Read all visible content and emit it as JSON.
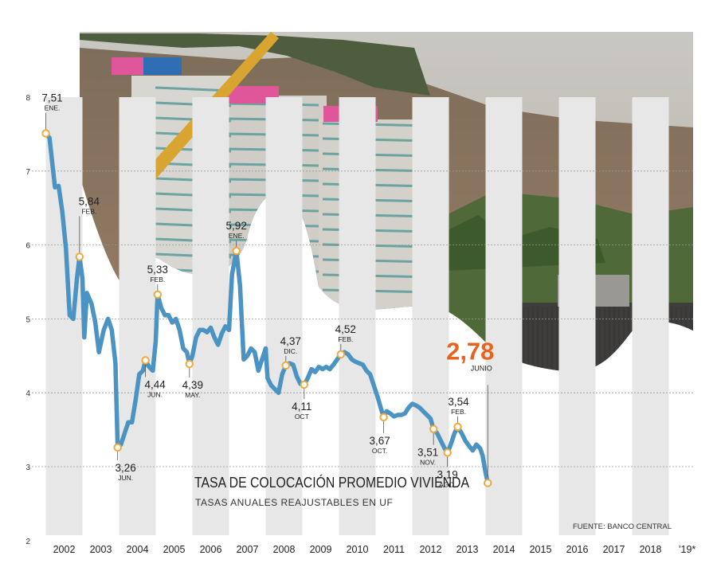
{
  "chart_data": {
    "type": "line",
    "title": "TASA DE COLOCACIÓN PROMEDIO VIVIENDA",
    "subtitle": "TASAS ANUALES REAJUSTABLES EN UF",
    "source": "FUENTE: BANCO CENTRAL",
    "xlabel": "",
    "ylabel": "",
    "ylim": [
      2,
      8
    ],
    "yticks": [
      "2",
      "3",
      "4",
      "5",
      "6",
      "7",
      "8"
    ],
    "xlim": [
      2002,
      2020
    ],
    "years": [
      "2002",
      "2003",
      "2004",
      "2005",
      "2006",
      "2007",
      "2008",
      "2009",
      "2010",
      "2011",
      "2012",
      "2013",
      "2014",
      "2015",
      "2016",
      "2017",
      "2018",
      "’19*"
    ],
    "grid": true,
    "accent_color": "#e8641e",
    "line_color": "#4a93c2",
    "band_color": "#e7e7e7",
    "marker_color": "#f2a93b",
    "series": [
      {
        "points": [
          [
            2002.0,
            7.51
          ],
          [
            2002.1,
            7.45
          ],
          [
            2002.25,
            6.78
          ],
          [
            2002.35,
            6.8
          ],
          [
            2002.45,
            6.45
          ],
          [
            2002.55,
            5.95
          ],
          [
            2002.65,
            5.05
          ],
          [
            2002.75,
            5.0
          ],
          [
            2002.85,
            5.55
          ],
          [
            2002.92,
            5.84
          ],
          [
            2003.0,
            5.55
          ],
          [
            2003.05,
            4.75
          ],
          [
            2003.12,
            5.35
          ],
          [
            2003.25,
            5.2
          ],
          [
            2003.35,
            4.95
          ],
          [
            2003.45,
            4.55
          ],
          [
            2003.58,
            4.85
          ],
          [
            2003.7,
            5.0
          ],
          [
            2003.8,
            4.85
          ],
          [
            2003.9,
            4.4
          ],
          [
            2003.96,
            3.26
          ],
          [
            2004.05,
            3.3
          ],
          [
            2004.15,
            3.45
          ],
          [
            2004.25,
            3.6
          ],
          [
            2004.35,
            3.6
          ],
          [
            2004.45,
            3.9
          ],
          [
            2004.55,
            4.25
          ],
          [
            2004.65,
            4.3
          ],
          [
            2004.72,
            4.44
          ],
          [
            2004.82,
            4.35
          ],
          [
            2004.92,
            4.3
          ],
          [
            2005.0,
            4.7
          ],
          [
            2005.05,
            5.33
          ],
          [
            2005.15,
            5.15
          ],
          [
            2005.25,
            5.05
          ],
          [
            2005.35,
            5.05
          ],
          [
            2005.45,
            4.95
          ],
          [
            2005.55,
            5.0
          ],
          [
            2005.65,
            4.85
          ],
          [
            2005.75,
            4.6
          ],
          [
            2005.85,
            4.55
          ],
          [
            2005.92,
            4.39
          ],
          [
            2006.0,
            4.5
          ],
          [
            2006.1,
            4.75
          ],
          [
            2006.2,
            4.85
          ],
          [
            2006.3,
            4.85
          ],
          [
            2006.4,
            4.82
          ],
          [
            2006.5,
            4.88
          ],
          [
            2006.6,
            4.75
          ],
          [
            2006.7,
            4.65
          ],
          [
            2006.8,
            4.8
          ],
          [
            2006.9,
            4.9
          ],
          [
            2007.0,
            4.85
          ],
          [
            2007.08,
            5.6
          ],
          [
            2007.2,
            5.92
          ],
          [
            2007.3,
            5.45
          ],
          [
            2007.4,
            4.45
          ],
          [
            2007.5,
            4.5
          ],
          [
            2007.6,
            4.6
          ],
          [
            2007.7,
            4.55
          ],
          [
            2007.8,
            4.3
          ],
          [
            2007.9,
            4.45
          ],
          [
            2008.0,
            4.6
          ],
          [
            2008.05,
            4.2
          ],
          [
            2008.15,
            4.1
          ],
          [
            2008.25,
            4.05
          ],
          [
            2008.35,
            4.0
          ],
          [
            2008.45,
            4.25
          ],
          [
            2008.55,
            4.37
          ],
          [
            2008.65,
            4.4
          ],
          [
            2008.75,
            4.38
          ],
          [
            2008.85,
            4.22
          ],
          [
            2008.95,
            4.12
          ],
          [
            2009.05,
            4.11
          ],
          [
            2009.15,
            4.2
          ],
          [
            2009.25,
            4.32
          ],
          [
            2009.35,
            4.28
          ],
          [
            2009.45,
            4.35
          ],
          [
            2009.55,
            4.32
          ],
          [
            2009.65,
            4.35
          ],
          [
            2009.75,
            4.32
          ],
          [
            2009.85,
            4.38
          ],
          [
            2009.95,
            4.45
          ],
          [
            2010.05,
            4.52
          ],
          [
            2010.15,
            4.55
          ],
          [
            2010.25,
            4.52
          ],
          [
            2010.35,
            4.45
          ],
          [
            2010.45,
            4.42
          ],
          [
            2010.55,
            4.4
          ],
          [
            2010.65,
            4.38
          ],
          [
            2010.75,
            4.3
          ],
          [
            2010.85,
            4.25
          ],
          [
            2010.95,
            4.1
          ],
          [
            2011.05,
            3.95
          ],
          [
            2011.15,
            3.78
          ],
          [
            2011.22,
            3.67
          ],
          [
            2011.3,
            3.75
          ],
          [
            2011.4,
            3.72
          ],
          [
            2011.5,
            3.68
          ],
          [
            2011.6,
            3.7
          ],
          [
            2011.7,
            3.7
          ],
          [
            2011.8,
            3.72
          ],
          [
            2011.9,
            3.8
          ],
          [
            2012.0,
            3.85
          ],
          [
            2012.1,
            3.83
          ],
          [
            2012.2,
            3.8
          ],
          [
            2012.3,
            3.75
          ],
          [
            2012.4,
            3.7
          ],
          [
            2012.5,
            3.65
          ],
          [
            2012.58,
            3.51
          ],
          [
            2012.68,
            3.45
          ],
          [
            2012.78,
            3.35
          ],
          [
            2012.88,
            3.25
          ],
          [
            2012.96,
            3.19
          ],
          [
            2013.05,
            3.3
          ],
          [
            2013.15,
            3.45
          ],
          [
            2013.24,
            3.54
          ],
          [
            2013.35,
            3.45
          ],
          [
            2013.45,
            3.35
          ],
          [
            2013.55,
            3.28
          ],
          [
            2013.65,
            3.22
          ],
          [
            2013.75,
            3.3
          ],
          [
            2013.85,
            3.25
          ],
          [
            2013.92,
            3.15
          ],
          [
            2014.0,
            2.92
          ],
          [
            2014.06,
            2.78
          ]
        ]
      }
    ],
    "annotations": [
      {
        "x": 2002.0,
        "y": 7.51,
        "value": "7,51",
        "label": "ENE."
      },
      {
        "x": 2002.92,
        "y": 5.84,
        "value": "5,84",
        "label": "FEB."
      },
      {
        "x": 2003.96,
        "y": 3.26,
        "value": "3,26",
        "label": "JUN."
      },
      {
        "x": 2004.72,
        "y": 4.44,
        "value": "4,44",
        "label": "JUN."
      },
      {
        "x": 2005.05,
        "y": 5.33,
        "value": "5,33",
        "label": "FEB."
      },
      {
        "x": 2005.92,
        "y": 4.39,
        "value": "4,39",
        "label": "MAY."
      },
      {
        "x": 2007.2,
        "y": 5.92,
        "value": "5,92",
        "label": "ENE."
      },
      {
        "x": 2008.55,
        "y": 4.37,
        "value": "4,37",
        "label": "DIC."
      },
      {
        "x": 2009.05,
        "y": 4.11,
        "value": "4,11",
        "label": "OCT"
      },
      {
        "x": 2010.05,
        "y": 4.52,
        "value": "4,52",
        "label": "FEB."
      },
      {
        "x": 2011.22,
        "y": 3.67,
        "value": "3,67",
        "label": "OCT."
      },
      {
        "x": 2012.58,
        "y": 3.51,
        "value": "3,51",
        "label": "NOV."
      },
      {
        "x": 2012.96,
        "y": 3.19,
        "value": "3,19",
        "label": "AGO."
      },
      {
        "x": 2013.24,
        "y": 3.54,
        "value": "3,54",
        "label": "FEB."
      },
      {
        "x": 2014.06,
        "y": 2.78,
        "value": "2,78",
        "label": "JUNIO",
        "highlight": true
      }
    ]
  }
}
